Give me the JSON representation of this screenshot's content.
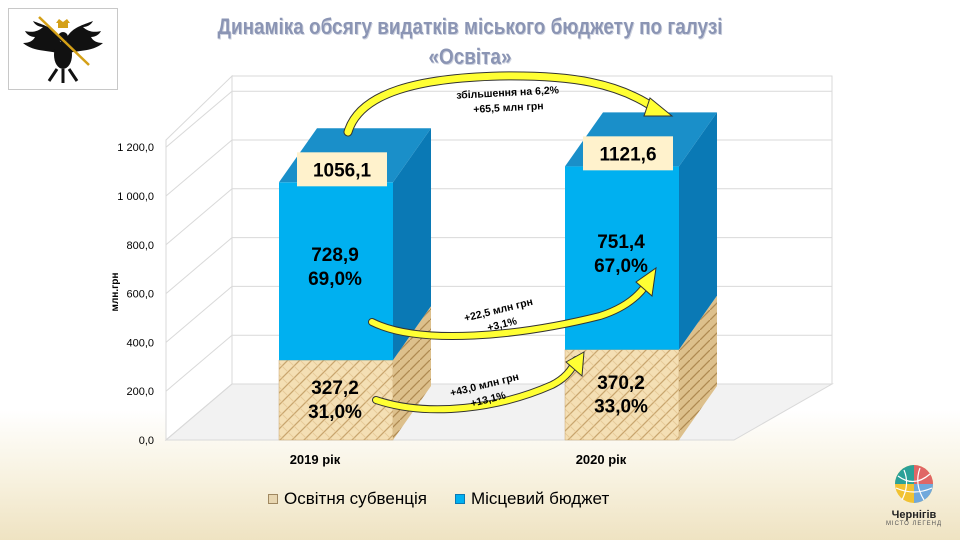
{
  "title_line1": "Динаміка обсягу видатків  міського бюджету по галузі",
  "title_line2": "«Освіта»",
  "logo": {
    "name": "Чернігів",
    "tagline": "МІСТО ЛЕГЕНД"
  },
  "colors": {
    "local": "#00b0f0",
    "local_side": "#0a79b5",
    "subvention": "#f2dcb0",
    "arrow": "#ffff33",
    "title": "#8b95b4"
  },
  "chart_data": {
    "type": "bar",
    "stacked": true,
    "categories": [
      "2019 рік",
      "2020 рік"
    ],
    "series": [
      {
        "name": "Освітня субвенція",
        "values": [
          327.2,
          370.2
        ],
        "labels": [
          "327,2\n31,0%",
          "370,2\n33,0%"
        ]
      },
      {
        "name": "Місцевий бюджет",
        "values": [
          728.9,
          751.4
        ],
        "labels": [
          "728,9\n69,0%",
          "751,4\n67,0%"
        ]
      }
    ],
    "totals": [
      "1056,1",
      "1121,6"
    ],
    "ylabel": "млн.грн",
    "ylim": [
      0,
      1200
    ],
    "yticks": [
      "0,0",
      "200,0",
      "400,0",
      "600,0",
      "800,0",
      "1 000,0",
      "1 200,0"
    ],
    "grid": true,
    "legend_position": "bottom",
    "annotations": [
      {
        "text": [
          "збільшення на 6,2%",
          "+65,5 млн грн"
        ]
      },
      {
        "text": [
          "+22,5 млн грн",
          "+3,1%"
        ]
      },
      {
        "text": [
          "+43,0 млн грн",
          "+13,1%"
        ]
      }
    ]
  }
}
